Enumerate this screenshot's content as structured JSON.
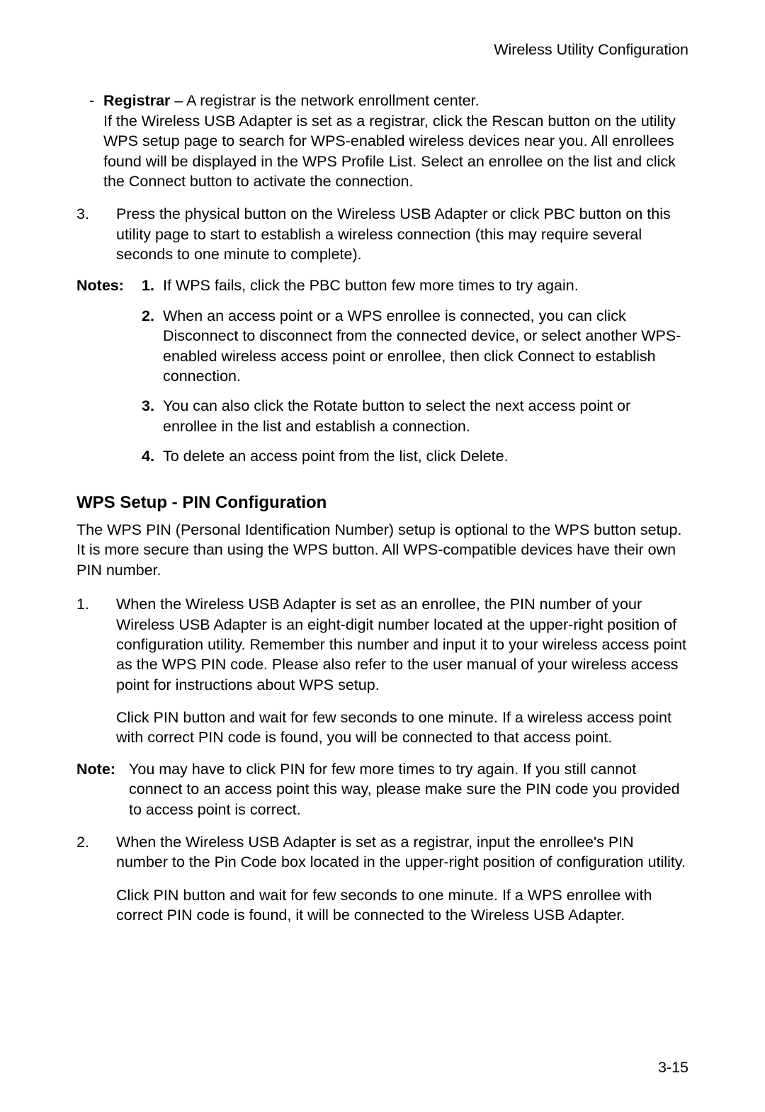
{
  "header": "Wireless Utility Configuration",
  "registrar": {
    "label": "Registrar",
    "lead": " – A registrar is the network enrollment center.",
    "body": "If the Wireless USB Adapter is set as a registrar, click the Rescan button on the utility WPS setup page to search for WPS-enabled wireless devices near you. All enrollees found will be displayed in the WPS Profile List. Select an enrollee on the list and click the Connect button to activate the connection."
  },
  "step3": {
    "num": "3.",
    "text": "Press the physical button on the Wireless USB Adapter or click PBC button on this utility page to start to establish a wireless connection (this may require several seconds to one minute to complete)."
  },
  "notesLabel": "Notes:",
  "notes": {
    "n1": {
      "num": "1.",
      "text": "If WPS fails, click the PBC button few more times to try again."
    },
    "n2": {
      "num": "2.",
      "text": "When an access point or a WPS enrollee is connected, you can click Disconnect to disconnect from the connected device, or select another WPS-enabled wireless access point or enrollee, then click Connect to establish connection."
    },
    "n3": {
      "num": "3.",
      "text": "You can also click the Rotate button to select the next access point or enrollee in the list and establish a connection."
    },
    "n4": {
      "num": "4.",
      "text": "To delete an access point from the list, click Delete."
    }
  },
  "section": {
    "heading": "WPS Setup - PIN Configuration",
    "intro": "The WPS PIN (Personal Identification Number) setup is optional to the WPS button setup. It is more secure than using the WPS button. All WPS-compatible devices have their own PIN number."
  },
  "pin1": {
    "num": "1.",
    "p1": "When the Wireless USB Adapter is set as an enrollee, the PIN number of your Wireless USB Adapter is an eight-digit number located at the upper-right position of configuration utility. Remember this number and input it to your wireless access point as the WPS PIN code. Please also refer to the user manual of your wireless access point for instructions about WPS setup.",
    "p2": "Click PIN button and wait for few seconds to one minute. If a wireless access point with correct PIN code is found, you will be connected to that access point."
  },
  "noteInline": {
    "label": "Note:",
    "text": "You may have to click PIN for few more times to try again. If you still cannot connect to an access point this way, please make sure the PIN code you provided to access point is correct."
  },
  "pin2": {
    "num": "2.",
    "p1": "When the Wireless USB Adapter is set as a registrar, input the enrollee's PIN number to the Pin Code box located in the upper-right position of configuration utility.",
    "p2": "Click PIN button and wait for few seconds to one minute. If a WPS enrollee with correct PIN code is found, it will be connected to the Wireless USB Adapter."
  },
  "pageNumber": "3-15"
}
